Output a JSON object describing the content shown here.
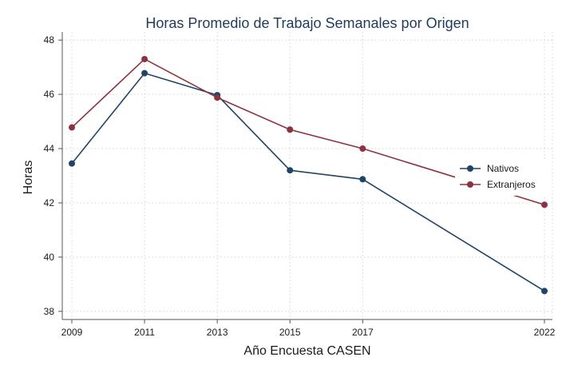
{
  "chart_data": {
    "type": "line",
    "title": "Horas Promedio de Trabajo Semanales por Origen",
    "xlabel": "Año Encuesta CASEN",
    "ylabel": "Horas",
    "x": [
      2009,
      2011,
      2013,
      2015,
      2017,
      2022
    ],
    "x_ticks": [
      "2009",
      "2011",
      "2013",
      "2015",
      "2017",
      "2022"
    ],
    "xlim": [
      2009,
      2022
    ],
    "ylim": [
      37.7,
      48.3
    ],
    "y_ticks": [
      38,
      40,
      42,
      44,
      46,
      48
    ],
    "y_tick_labels": [
      "38",
      "40",
      "42",
      "44",
      "46",
      "48"
    ],
    "grid": true,
    "legend_position": "right",
    "series": [
      {
        "name": "Nativos",
        "color": "#1f4466",
        "values": [
          43.45,
          46.78,
          45.97,
          43.2,
          42.87,
          38.75
        ]
      },
      {
        "name": "Extranjeros",
        "color": "#8b3340",
        "values": [
          44.78,
          47.3,
          45.88,
          44.7,
          44.0,
          41.93
        ]
      }
    ]
  }
}
